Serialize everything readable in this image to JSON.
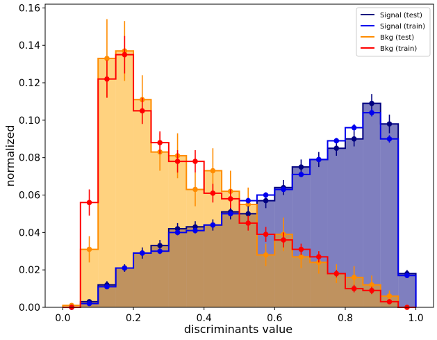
{
  "chart_data": {
    "type": "histogram",
    "xlabel": "discriminants value",
    "ylabel": "normalized",
    "xlim": [
      -0.05,
      1.05
    ],
    "ylim": [
      0.0,
      0.162
    ],
    "x_ticks": [
      "0.0",
      "0.2",
      "0.4",
      "0.6",
      "0.8",
      "1.0"
    ],
    "y_ticks": [
      "0.00",
      "0.02",
      "0.04",
      "0.06",
      "0.08",
      "0.10",
      "0.12",
      "0.14",
      "0.16"
    ],
    "bin_edges": [
      0.0,
      0.05,
      0.1,
      0.15,
      0.2,
      0.25,
      0.3,
      0.35,
      0.4,
      0.45,
      0.5,
      0.55,
      0.6,
      0.65,
      0.7,
      0.75,
      0.8,
      0.85,
      0.9,
      0.95,
      1.0
    ],
    "legend_position": "top-right",
    "series": [
      {
        "name": "Signal (test)",
        "role": "test",
        "color": "#000080",
        "fill": "#000080",
        "values": [
          0.0,
          0.003,
          0.012,
          0.021,
          0.029,
          0.033,
          0.042,
          0.043,
          0.044,
          0.051,
          0.05,
          0.057,
          0.064,
          0.075,
          0.079,
          0.085,
          0.09,
          0.109,
          0.098,
          0.018
        ],
        "errors": [
          0.0005,
          0.001,
          0.002,
          0.002,
          0.003,
          0.003,
          0.003,
          0.003,
          0.003,
          0.004,
          0.004,
          0.004,
          0.004,
          0.004,
          0.004,
          0.004,
          0.004,
          0.005,
          0.005,
          0.002
        ]
      },
      {
        "name": "Signal (train)",
        "role": "train",
        "color": "#0000ee",
        "values": [
          0.0,
          0.002,
          0.011,
          0.021,
          0.029,
          0.03,
          0.04,
          0.041,
          0.044,
          0.05,
          0.057,
          0.06,
          0.063,
          0.071,
          0.079,
          0.089,
          0.096,
          0.104,
          0.09,
          0.017
        ],
        "errors": [
          0.0,
          0.0005,
          0.001,
          0.0015,
          0.0015,
          0.0015,
          0.0015,
          0.0015,
          0.0015,
          0.0015,
          0.0015,
          0.0015,
          0.0015,
          0.0015,
          0.0015,
          0.0015,
          0.002,
          0.002,
          0.002,
          0.001
        ]
      },
      {
        "name": "Bkg (test)",
        "role": "test",
        "color": "#ff8c00",
        "fill": "#ffa500",
        "values": [
          0.001,
          0.031,
          0.133,
          0.137,
          0.111,
          0.083,
          0.081,
          0.063,
          0.073,
          0.062,
          0.055,
          0.028,
          0.039,
          0.027,
          0.024,
          0.018,
          0.016,
          0.012,
          0.006,
          0.0
        ],
        "errors": [
          0.001,
          0.007,
          0.021,
          0.016,
          0.013,
          0.01,
          0.012,
          0.009,
          0.012,
          0.011,
          0.009,
          0.006,
          0.009,
          0.006,
          0.006,
          0.005,
          0.006,
          0.005,
          0.003,
          0.0
        ]
      },
      {
        "name": "Bkg (train)",
        "role": "train",
        "color": "#ff0000",
        "values": [
          0.0,
          0.056,
          0.122,
          0.135,
          0.105,
          0.088,
          0.078,
          0.078,
          0.061,
          0.058,
          0.045,
          0.039,
          0.036,
          0.031,
          0.027,
          0.018,
          0.01,
          0.009,
          0.003,
          0.0
        ],
        "errors": [
          0.0,
          0.007,
          0.01,
          0.01,
          0.007,
          0.006,
          0.006,
          0.006,
          0.005,
          0.005,
          0.004,
          0.004,
          0.004,
          0.003,
          0.003,
          0.002,
          0.002,
          0.002,
          0.001,
          0.0
        ]
      }
    ]
  }
}
